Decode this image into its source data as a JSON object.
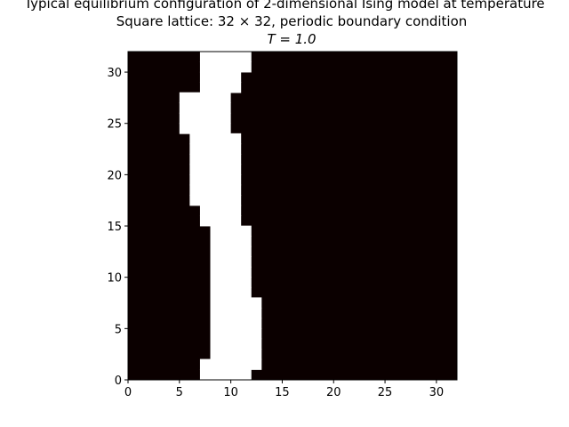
{
  "chart_data": {
    "type": "heatmap",
    "title_lines": [
      "Typical equilibrium configuration of 2-dimensional Ising model at temperature",
      "Square lattice: 32 × 32, periodic boundary condition",
      "T = 1.0"
    ],
    "xlabel": "",
    "ylabel": "",
    "xlim": [
      0,
      32
    ],
    "ylim": [
      0,
      32
    ],
    "xticks": [
      0,
      5,
      10,
      15,
      20,
      25,
      30
    ],
    "yticks": [
      0,
      5,
      10,
      15,
      20,
      25,
      30
    ],
    "grid": false,
    "colors": {
      "spin_down": "#0b0000",
      "spin_up": "#ffffff"
    },
    "up_spin_columns_by_row": [
      {
        "y": 0,
        "x_start": 7,
        "x_end": 12
      },
      {
        "y": 1,
        "x_start": 7,
        "x_end": 13
      },
      {
        "y": 2,
        "x_start": 8,
        "x_end": 13
      },
      {
        "y": 3,
        "x_start": 8,
        "x_end": 13
      },
      {
        "y": 4,
        "x_start": 8,
        "x_end": 13
      },
      {
        "y": 5,
        "x_start": 8,
        "x_end": 13
      },
      {
        "y": 6,
        "x_start": 8,
        "x_end": 13
      },
      {
        "y": 7,
        "x_start": 8,
        "x_end": 13
      },
      {
        "y": 8,
        "x_start": 8,
        "x_end": 12
      },
      {
        "y": 9,
        "x_start": 8,
        "x_end": 12
      },
      {
        "y": 10,
        "x_start": 8,
        "x_end": 12
      },
      {
        "y": 11,
        "x_start": 8,
        "x_end": 12
      },
      {
        "y": 12,
        "x_start": 8,
        "x_end": 12
      },
      {
        "y": 13,
        "x_start": 8,
        "x_end": 12
      },
      {
        "y": 14,
        "x_start": 8,
        "x_end": 12
      },
      {
        "y": 15,
        "x_start": 7,
        "x_end": 11
      },
      {
        "y": 16,
        "x_start": 7,
        "x_end": 11
      },
      {
        "y": 17,
        "x_start": 6,
        "x_end": 11
      },
      {
        "y": 18,
        "x_start": 6,
        "x_end": 11
      },
      {
        "y": 19,
        "x_start": 6,
        "x_end": 11
      },
      {
        "y": 20,
        "x_start": 6,
        "x_end": 11
      },
      {
        "y": 21,
        "x_start": 6,
        "x_end": 11
      },
      {
        "y": 22,
        "x_start": 6,
        "x_end": 11
      },
      {
        "y": 23,
        "x_start": 6,
        "x_end": 11
      },
      {
        "y": 24,
        "x_start": 5,
        "x_end": 10
      },
      {
        "y": 25,
        "x_start": 5,
        "x_end": 10
      },
      {
        "y": 26,
        "x_start": 5,
        "x_end": 10
      },
      {
        "y": 27,
        "x_start": 5,
        "x_end": 10
      },
      {
        "y": 28,
        "x_start": 7,
        "x_end": 11
      },
      {
        "y": 29,
        "x_start": 7,
        "x_end": 11
      },
      {
        "y": 30,
        "x_start": 7,
        "x_end": 12
      },
      {
        "y": 31,
        "x_start": 7,
        "x_end": 12
      }
    ]
  }
}
